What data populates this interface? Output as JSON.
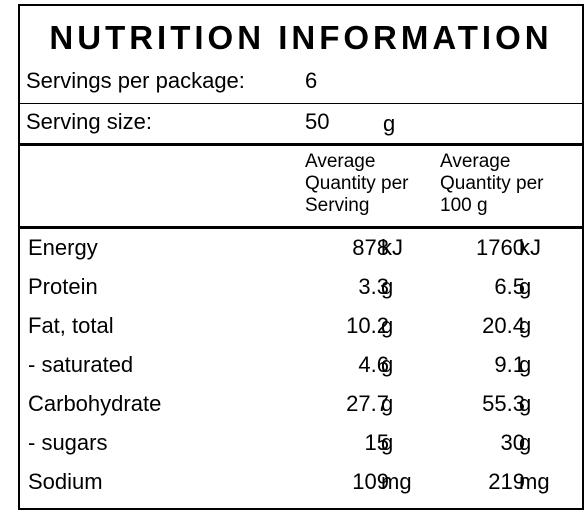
{
  "title": "NUTRITION INFORMATION",
  "servings": {
    "label": "Servings per package:",
    "value": "6"
  },
  "serving_size": {
    "label": "Serving size:",
    "value": "50",
    "unit": "g"
  },
  "headers": {
    "col1": [
      "Average",
      "Quantity per",
      "Serving"
    ],
    "col2": [
      "Average",
      "Quantity per",
      "100 g"
    ]
  },
  "rows": [
    {
      "name": "Energy",
      "serving": "878",
      "serving_unit": "kJ",
      "per100": "1760",
      "per100_unit": "kJ"
    },
    {
      "name": "Protein",
      "serving": "3.3",
      "serving_unit": "g",
      "per100": "6.5",
      "per100_unit": "g"
    },
    {
      "name": "Fat, total",
      "serving": "10.2",
      "serving_unit": "g",
      "per100": "20.4",
      "per100_unit": "g"
    },
    {
      "name": "- saturated",
      "serving": "4.6",
      "serving_unit": "g",
      "per100": "9.1",
      "per100_unit": "g"
    },
    {
      "name": "Carbohydrate",
      "serving": "27.7",
      "serving_unit": "g",
      "per100": "55.3",
      "per100_unit": "g"
    },
    {
      "name": "- sugars",
      "serving": "15",
      "serving_unit": "g",
      "per100": "30",
      "per100_unit": "g"
    },
    {
      "name": "Sodium",
      "serving": "109",
      "serving_unit": "mg",
      "per100": "219",
      "per100_unit": "mg"
    }
  ]
}
